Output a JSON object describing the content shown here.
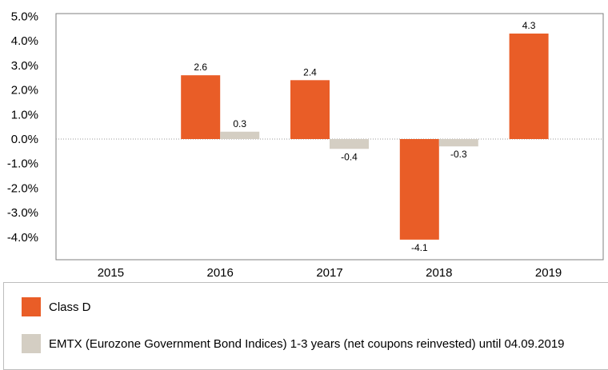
{
  "chart_data": {
    "type": "bar",
    "categories": [
      "2015",
      "2016",
      "2017",
      "2018",
      "2019"
    ],
    "series": [
      {
        "name": "Class D",
        "color": "#e95d27",
        "values": [
          null,
          2.6,
          2.4,
          -4.1,
          4.3
        ],
        "labels": [
          "",
          "2.6",
          "2.4",
          "-4.1",
          "4.3"
        ]
      },
      {
        "name": "EMTX (Eurozone Government Bond Indices) 1-3 years (net coupons reinvested) until 04.09.2019",
        "color": "#d4cec3",
        "values": [
          null,
          0.3,
          -0.4,
          -0.3,
          null
        ],
        "labels": [
          "",
          "0.3",
          "-0.4",
          "-0.3",
          ""
        ]
      }
    ],
    "yticks": [
      5,
      4,
      3,
      2,
      1,
      0,
      -1,
      -2,
      -3,
      -4
    ],
    "ytick_labels": [
      "5.0%",
      "4.0%",
      "3.0%",
      "2.0%",
      "1.0%",
      "0.0%",
      "-1.0%",
      "-2.0%",
      "-3.0%",
      "-4.0%"
    ],
    "ylim": [
      -5,
      5
    ],
    "grid": false,
    "zero_line": "dotted",
    "legend_position": "bottom"
  },
  "legend": {
    "items": [
      {
        "label": "Class D",
        "color": "#e95d27"
      },
      {
        "label": "EMTX (Eurozone Government Bond Indices) 1-3 years (net coupons reinvested) until 04.09.2019",
        "color": "#d4cec3"
      }
    ]
  }
}
